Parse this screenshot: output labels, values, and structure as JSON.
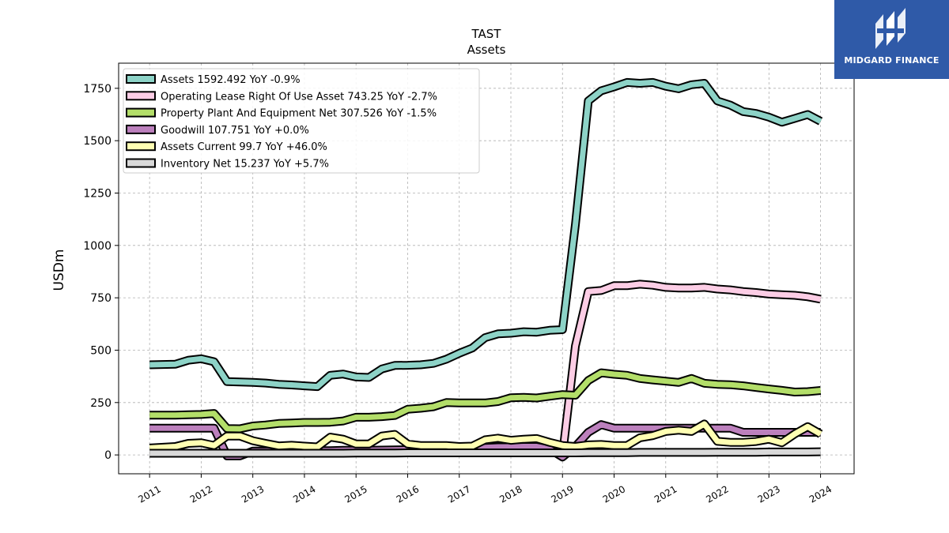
{
  "brand": {
    "name": "MIDGARD FINANCE",
    "bg": "#2f5aa8"
  },
  "chart_data": {
    "type": "line",
    "title": "TAST",
    "subtitle": "Assets",
    "ylabel": "USDm",
    "xlabel": "",
    "ylim": [
      -90,
      1870
    ],
    "xlim": [
      2010.4,
      2024.65
    ],
    "yticks": [
      0,
      250,
      500,
      750,
      1000,
      1250,
      1500,
      1750
    ],
    "xticks": [
      2011,
      2012,
      2013,
      2014,
      2015,
      2016,
      2017,
      2018,
      2019,
      2020,
      2021,
      2022,
      2023,
      2024
    ],
    "grid": true,
    "legend_position": "top-left",
    "series": [
      {
        "name": "Assets",
        "legend": "Assets  1592.492 YoY -0.9%",
        "color": "#8dd3c7",
        "points": [
          [
            2011,
            430
          ],
          [
            2011.5,
            433
          ],
          [
            2011.75,
            452
          ],
          [
            2012,
            459
          ],
          [
            2012.25,
            445
          ],
          [
            2012.5,
            350
          ],
          [
            2012.75,
            348
          ],
          [
            2013,
            346
          ],
          [
            2013.25,
            343
          ],
          [
            2013.5,
            337
          ],
          [
            2013.75,
            334
          ],
          [
            2014,
            330
          ],
          [
            2014.25,
            326
          ],
          [
            2014.5,
            380
          ],
          [
            2014.75,
            386
          ],
          [
            2015,
            372
          ],
          [
            2015.25,
            370
          ],
          [
            2015.5,
            410
          ],
          [
            2015.75,
            427
          ],
          [
            2016,
            428
          ],
          [
            2016.25,
            430
          ],
          [
            2016.5,
            437
          ],
          [
            2016.75,
            457
          ],
          [
            2017,
            485
          ],
          [
            2017.25,
            510
          ],
          [
            2017.5,
            560
          ],
          [
            2017.75,
            578
          ],
          [
            2018,
            581
          ],
          [
            2018.25,
            588
          ],
          [
            2018.5,
            586
          ],
          [
            2018.75,
            595
          ],
          [
            2019,
            598
          ],
          [
            2019.25,
            1100
          ],
          [
            2019.5,
            1690
          ],
          [
            2019.75,
            1738
          ],
          [
            2020,
            1757
          ],
          [
            2020.25,
            1778
          ],
          [
            2020.5,
            1774
          ],
          [
            2020.75,
            1778
          ],
          [
            2021,
            1760
          ],
          [
            2021.25,
            1748
          ],
          [
            2021.5,
            1767
          ],
          [
            2021.75,
            1774
          ],
          [
            2022,
            1690
          ],
          [
            2022.25,
            1670
          ],
          [
            2022.5,
            1639
          ],
          [
            2022.75,
            1630
          ],
          [
            2023,
            1612
          ],
          [
            2023.25,
            1588
          ],
          [
            2023.5,
            1606
          ],
          [
            2023.75,
            1625
          ],
          [
            2024,
            1592.492
          ]
        ]
      },
      {
        "name": "Operating Lease Right Of Use Asset",
        "legend": "Operating Lease Right Of Use Asset  743.25 YoY -2.7%",
        "color": "#fccde5",
        "points": [
          [
            2019,
            0
          ],
          [
            2019.25,
            520
          ],
          [
            2019.5,
            780
          ],
          [
            2019.75,
            785
          ],
          [
            2020,
            808
          ],
          [
            2020.25,
            808
          ],
          [
            2020.5,
            815
          ],
          [
            2020.75,
            810
          ],
          [
            2021,
            800
          ],
          [
            2021.25,
            797
          ],
          [
            2021.5,
            797
          ],
          [
            2021.75,
            800
          ],
          [
            2022,
            792
          ],
          [
            2022.25,
            788
          ],
          [
            2022.5,
            780
          ],
          [
            2022.75,
            775
          ],
          [
            2023,
            768
          ],
          [
            2023.25,
            765
          ],
          [
            2023.5,
            762
          ],
          [
            2023.75,
            755
          ],
          [
            2024,
            743.25
          ]
        ]
      },
      {
        "name": "Property Plant And Equipment Net",
        "legend": "Property Plant And Equipment Net  307.526 YoY -1.5%",
        "color": "#b3de69",
        "points": [
          [
            2011,
            190
          ],
          [
            2011.5,
            190
          ],
          [
            2011.75,
            192
          ],
          [
            2012,
            193
          ],
          [
            2012.25,
            198
          ],
          [
            2012.5,
            126
          ],
          [
            2012.75,
            125
          ],
          [
            2013,
            138
          ],
          [
            2013.25,
            143
          ],
          [
            2013.5,
            150
          ],
          [
            2013.75,
            152
          ],
          [
            2014,
            155
          ],
          [
            2014.25,
            155
          ],
          [
            2014.5,
            156
          ],
          [
            2014.75,
            162
          ],
          [
            2015,
            180
          ],
          [
            2015.25,
            180
          ],
          [
            2015.5,
            183
          ],
          [
            2015.75,
            188
          ],
          [
            2016,
            218
          ],
          [
            2016.25,
            223
          ],
          [
            2016.5,
            230
          ],
          [
            2016.75,
            250
          ],
          [
            2017,
            248
          ],
          [
            2017.25,
            248
          ],
          [
            2017.5,
            248
          ],
          [
            2017.75,
            255
          ],
          [
            2018,
            273
          ],
          [
            2018.25,
            275
          ],
          [
            2018.5,
            272
          ],
          [
            2018.75,
            280
          ],
          [
            2019,
            288
          ],
          [
            2019.25,
            285
          ],
          [
            2019.5,
            355
          ],
          [
            2019.75,
            392
          ],
          [
            2020,
            385
          ],
          [
            2020.25,
            380
          ],
          [
            2020.5,
            365
          ],
          [
            2020.75,
            358
          ],
          [
            2021,
            352
          ],
          [
            2021.25,
            346
          ],
          [
            2021.5,
            365
          ],
          [
            2021.75,
            342
          ],
          [
            2022,
            337
          ],
          [
            2022.25,
            335
          ],
          [
            2022.5,
            330
          ],
          [
            2022.75,
            322
          ],
          [
            2023,
            315
          ],
          [
            2023.25,
            308
          ],
          [
            2023.5,
            300
          ],
          [
            2023.75,
            302
          ],
          [
            2024,
            307.526
          ]
        ]
      },
      {
        "name": "Goodwill",
        "legend": "Goodwill  107.751 YoY +0.0%",
        "color": "#bc80bd",
        "points": [
          [
            2011,
            128
          ],
          [
            2011.5,
            128
          ],
          [
            2011.75,
            128
          ],
          [
            2012,
            128
          ],
          [
            2012.25,
            128
          ],
          [
            2012.5,
            -5
          ],
          [
            2012.75,
            -5
          ],
          [
            2013,
            18
          ],
          [
            2013.25,
            18
          ],
          [
            2013.5,
            18
          ],
          [
            2013.75,
            20
          ],
          [
            2014,
            20
          ],
          [
            2014.25,
            20
          ],
          [
            2014.5,
            20
          ],
          [
            2014.75,
            22
          ],
          [
            2015,
            22
          ],
          [
            2015.25,
            22
          ],
          [
            2015.5,
            23
          ],
          [
            2015.75,
            24
          ],
          [
            2016,
            25
          ],
          [
            2016.25,
            25
          ],
          [
            2016.5,
            25
          ],
          [
            2016.75,
            28
          ],
          [
            2017,
            28
          ],
          [
            2017.25,
            30
          ],
          [
            2017.5,
            35
          ],
          [
            2017.75,
            38
          ],
          [
            2018,
            38
          ],
          [
            2018.25,
            40
          ],
          [
            2018.5,
            40
          ],
          [
            2018.75,
            28
          ],
          [
            2019,
            -10
          ],
          [
            2019.25,
            40
          ],
          [
            2019.5,
            108
          ],
          [
            2019.75,
            145
          ],
          [
            2020,
            128
          ],
          [
            2020.25,
            128
          ],
          [
            2020.5,
            128
          ],
          [
            2020.75,
            128
          ],
          [
            2021,
            128
          ],
          [
            2021.25,
            128
          ],
          [
            2021.5,
            128
          ],
          [
            2021.75,
            128
          ],
          [
            2022,
            128
          ],
          [
            2022.25,
            128
          ],
          [
            2022.5,
            108
          ],
          [
            2022.75,
            108
          ],
          [
            2023,
            108
          ],
          [
            2023.25,
            108
          ],
          [
            2023.5,
            108
          ],
          [
            2023.75,
            108
          ],
          [
            2024,
            107.751
          ]
        ]
      },
      {
        "name": "Assets Current",
        "legend": "Assets Current  99.7 YoY +46.0%",
        "color": "#ffffb3",
        "points": [
          [
            2011,
            33
          ],
          [
            2011.5,
            40
          ],
          [
            2011.75,
            55
          ],
          [
            2012,
            58
          ],
          [
            2012.25,
            45
          ],
          [
            2012.5,
            90
          ],
          [
            2012.75,
            90
          ],
          [
            2013,
            68
          ],
          [
            2013.25,
            55
          ],
          [
            2013.5,
            43
          ],
          [
            2013.75,
            46
          ],
          [
            2014,
            42
          ],
          [
            2014.25,
            38
          ],
          [
            2014.5,
            85
          ],
          [
            2014.75,
            75
          ],
          [
            2015,
            52
          ],
          [
            2015.25,
            52
          ],
          [
            2015.5,
            90
          ],
          [
            2015.75,
            98
          ],
          [
            2016,
            52
          ],
          [
            2016.25,
            45
          ],
          [
            2016.5,
            45
          ],
          [
            2016.75,
            45
          ],
          [
            2017,
            40
          ],
          [
            2017.25,
            42
          ],
          [
            2017.5,
            72
          ],
          [
            2017.75,
            80
          ],
          [
            2018,
            70
          ],
          [
            2018.25,
            75
          ],
          [
            2018.5,
            78
          ],
          [
            2018.75,
            60
          ],
          [
            2019,
            45
          ],
          [
            2019.25,
            40
          ],
          [
            2019.5,
            48
          ],
          [
            2019.75,
            50
          ],
          [
            2020,
            45
          ],
          [
            2020.25,
            45
          ],
          [
            2020.5,
            82
          ],
          [
            2020.75,
            92
          ],
          [
            2021,
            112
          ],
          [
            2021.25,
            118
          ],
          [
            2021.5,
            112
          ],
          [
            2021.75,
            148
          ],
          [
            2022,
            65
          ],
          [
            2022.25,
            60
          ],
          [
            2022.5,
            60
          ],
          [
            2022.75,
            64
          ],
          [
            2023,
            75
          ],
          [
            2023.25,
            58
          ],
          [
            2023.5,
            100
          ],
          [
            2023.75,
            135
          ],
          [
            2024,
            99.7
          ]
        ]
      },
      {
        "name": "Inventory Net",
        "legend": "Inventory Net  15.237 YoY +5.7%",
        "color": "#d9d9d9",
        "points": [
          [
            2011,
            8
          ],
          [
            2011.5,
            8
          ],
          [
            2011.75,
            8
          ],
          [
            2012,
            8
          ],
          [
            2012.25,
            8
          ],
          [
            2012.5,
            8
          ],
          [
            2012.75,
            8
          ],
          [
            2013,
            8
          ],
          [
            2013.25,
            8
          ],
          [
            2013.5,
            8
          ],
          [
            2013.75,
            8
          ],
          [
            2014,
            8
          ],
          [
            2014.25,
            8
          ],
          [
            2014.5,
            8
          ],
          [
            2014.75,
            8
          ],
          [
            2015,
            9
          ],
          [
            2015.25,
            9
          ],
          [
            2015.5,
            9
          ],
          [
            2015.75,
            9
          ],
          [
            2016,
            10
          ],
          [
            2016.25,
            10
          ],
          [
            2016.5,
            10
          ],
          [
            2016.75,
            10
          ],
          [
            2017,
            10
          ],
          [
            2017.25,
            10
          ],
          [
            2017.5,
            10
          ],
          [
            2017.75,
            10
          ],
          [
            2018,
            10
          ],
          [
            2018.25,
            10
          ],
          [
            2018.5,
            10
          ],
          [
            2018.75,
            10
          ],
          [
            2019,
            10
          ],
          [
            2019.25,
            10
          ],
          [
            2019.5,
            11
          ],
          [
            2019.75,
            11
          ],
          [
            2020,
            11
          ],
          [
            2020.25,
            11
          ],
          [
            2020.5,
            12
          ],
          [
            2020.75,
            12
          ],
          [
            2021,
            12
          ],
          [
            2021.25,
            12
          ],
          [
            2021.5,
            12
          ],
          [
            2021.75,
            12
          ],
          [
            2022,
            13
          ],
          [
            2022.25,
            13
          ],
          [
            2022.5,
            13
          ],
          [
            2022.75,
            13
          ],
          [
            2023,
            14
          ],
          [
            2023.25,
            14
          ],
          [
            2023.5,
            14
          ],
          [
            2023.75,
            14
          ],
          [
            2024,
            15.237
          ]
        ]
      }
    ]
  }
}
